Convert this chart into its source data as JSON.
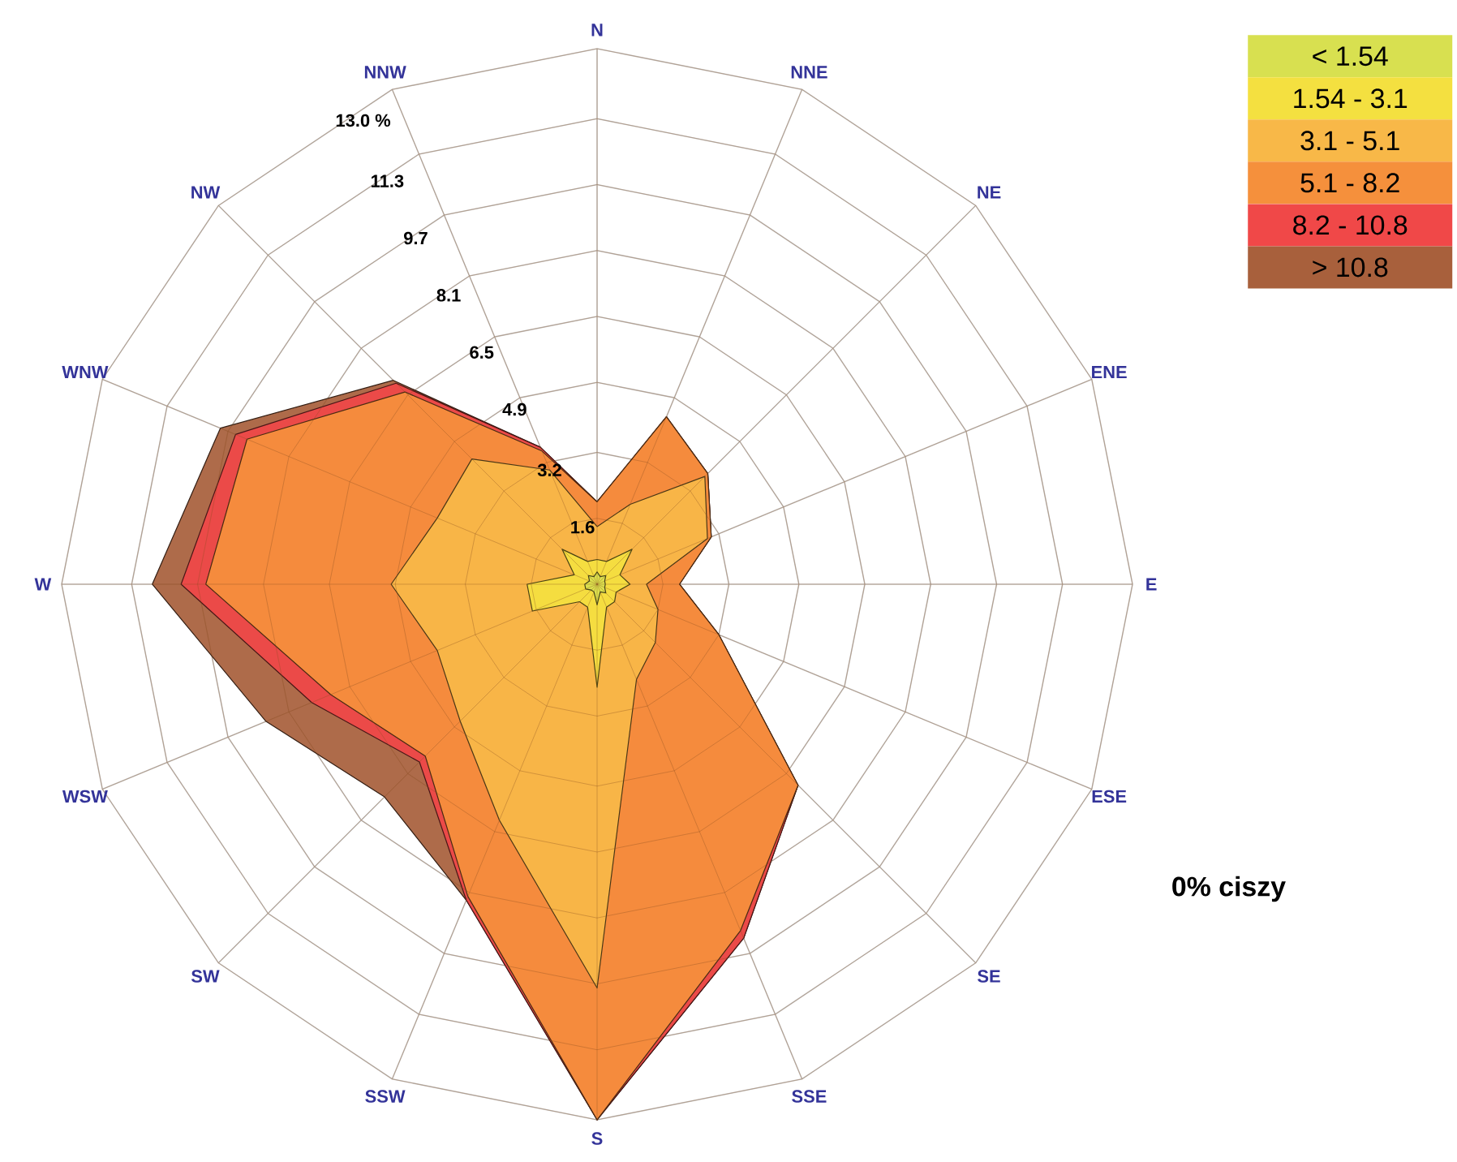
{
  "chart_data": {
    "type": "radar",
    "categories": [
      "N",
      "NNE",
      "NE",
      "ENE",
      "E",
      "ESE",
      "SE",
      "SSE",
      "S",
      "SSW",
      "SW",
      "WSW",
      "W",
      "WNW",
      "NW",
      "NNW"
    ],
    "series": [
      {
        "name": "< 1.54",
        "color": "#d8e050",
        "values": [
          0.3,
          0.2,
          0.3,
          0.2,
          0.2,
          0.2,
          0.3,
          0.2,
          0.5,
          0.2,
          0.2,
          0.3,
          0.3,
          0.2,
          0.3,
          0.2
        ]
      },
      {
        "name": "1.54 - 3.1",
        "color": "#f4e040",
        "values": [
          0.6,
          0.6,
          1.2,
          0.6,
          0.8,
          0.5,
          0.6,
          0.6,
          2.5,
          0.6,
          0.6,
          1.7,
          1.7,
          0.6,
          1.2,
          0.6
        ]
      },
      {
        "name": "3.1 - 5.1",
        "color": "#f8b848",
        "values": [
          1.4,
          2.1,
          3.7,
          2.9,
          1.2,
          1.6,
          2.0,
          2.5,
          9.8,
          6.2,
          4.7,
          4.2,
          5.0,
          4.2,
          4.3,
          3.0
        ]
      },
      {
        "name": "5.1 - 8.2",
        "color": "#f5903c",
        "values": [
          2.0,
          4.4,
          3.8,
          3.0,
          2.0,
          3.2,
          6.9,
          9.1,
          13.0,
          8.2,
          5.9,
          7.0,
          9.5,
          9.2,
          6.6,
          3.5
        ]
      },
      {
        "name": "8.2 - 10.8",
        "color": "#f04848",
        "values": [
          2.0,
          4.4,
          3.8,
          3.0,
          2.0,
          3.2,
          6.9,
          9.3,
          13.0,
          8.3,
          6.1,
          7.5,
          10.1,
          9.5,
          6.9,
          3.6
        ]
      },
      {
        "name": "> 10.8",
        "color": "#a8603c",
        "values": [
          2.0,
          4.4,
          3.8,
          3.0,
          2.0,
          3.2,
          6.9,
          9.3,
          13.0,
          8.3,
          7.3,
          8.7,
          10.8,
          9.9,
          7.0,
          3.6
        ]
      }
    ],
    "ylim": [
      0,
      13.0
    ],
    "yticks": [
      1.6,
      3.2,
      4.9,
      6.5,
      8.1,
      9.7,
      11.3,
      {
        "value": 13.0,
        "label": "13.0 %"
      }
    ],
    "grid": true,
    "legend": "top right",
    "annotations": [
      "0% ciszy"
    ]
  }
}
